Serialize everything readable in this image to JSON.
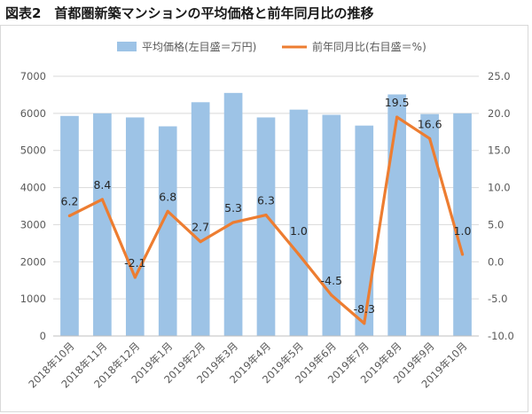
{
  "title": "図表2　首都圏新築マンションの平均価格と前年同月比の推移",
  "colors": {
    "bar": "#9dc3e6",
    "line": "#ed7d31",
    "grid": "#d9d9d9",
    "text": "#595959"
  },
  "chart_data": {
    "type": "bar+line",
    "categories": [
      "2018年10月",
      "2018年11月",
      "2018年12月",
      "2019年1月",
      "2019年2月",
      "2019年3月",
      "2019年4月",
      "2019年5月",
      "2019年6月",
      "2019年7月",
      "2019年8月",
      "2019年9月",
      "2019年10月"
    ],
    "series": [
      {
        "name": "平均価格(左目盛＝万円)",
        "type": "bar",
        "axis": "left",
        "values": [
          5930,
          6000,
          5890,
          5650,
          6300,
          6550,
          5890,
          6100,
          5960,
          5670,
          6510,
          5980,
          6000
        ]
      },
      {
        "name": "前年同月比(右目盛＝%)",
        "type": "line",
        "axis": "right",
        "values": [
          6.2,
          8.4,
          -2.1,
          6.8,
          2.7,
          5.3,
          6.3,
          1.0,
          -4.5,
          -8.3,
          19.5,
          16.6,
          1.0
        ],
        "labels": [
          "6.2",
          "8.4",
          "-2.1",
          "6.8",
          "2.7",
          "5.3",
          "6.3",
          "1.0",
          "-4.5",
          "-8.3",
          "19.5",
          "16.6",
          "1.0"
        ]
      }
    ],
    "y_left": {
      "min": 0,
      "max": 7000,
      "ticks": [
        "0",
        "1000",
        "2000",
        "3000",
        "4000",
        "5000",
        "6000",
        "7000"
      ]
    },
    "y_right": {
      "min": -10,
      "max": 25,
      "ticks": [
        "-10.0",
        "-5.0",
        "0.0",
        "5.0",
        "10.0",
        "15.0",
        "20.0",
        "25.0"
      ]
    },
    "grid": true,
    "legend_position": "top"
  }
}
